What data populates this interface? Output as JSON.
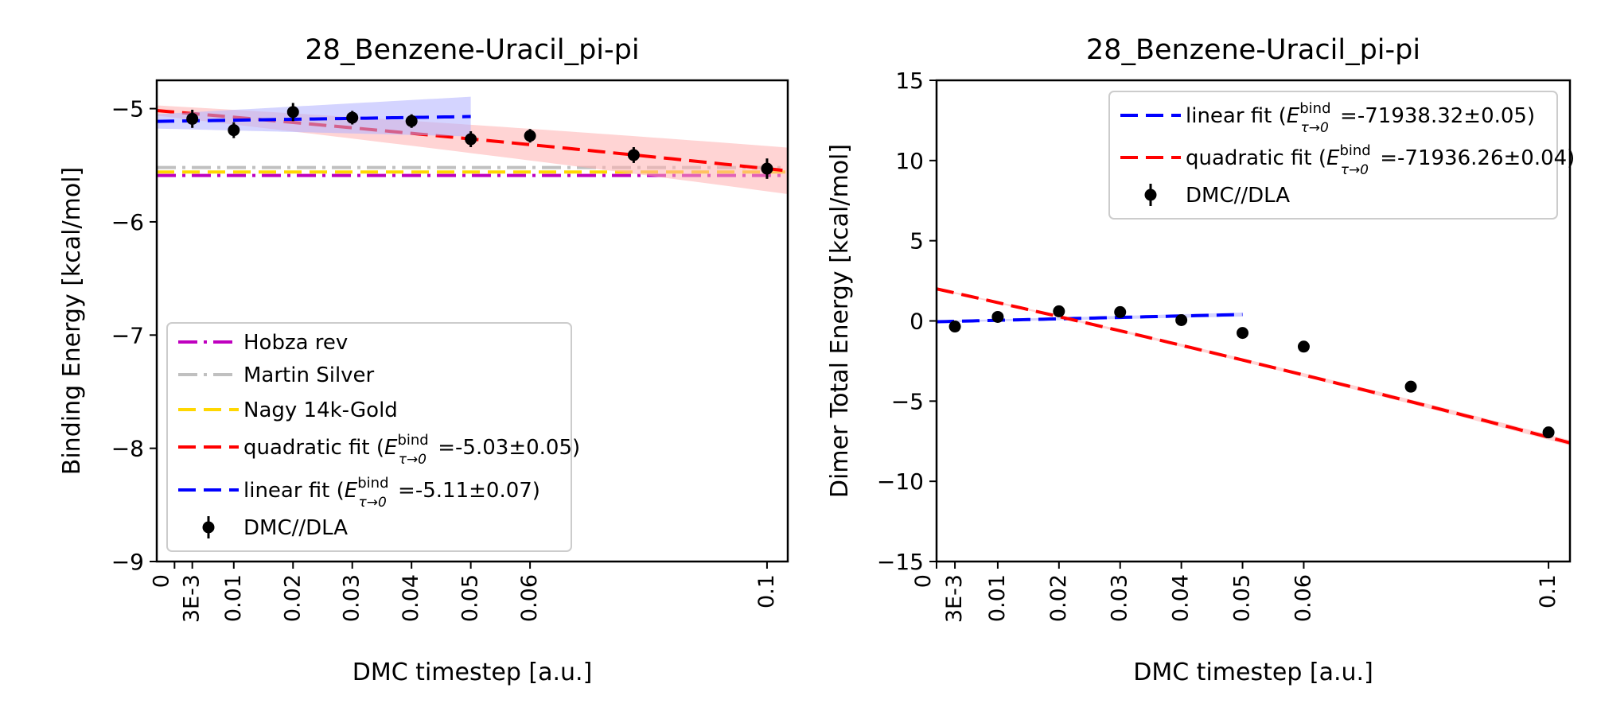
{
  "chart_data": [
    {
      "type": "scatter",
      "title": "28_Benzene-Uracil_pi-pi",
      "xlabel": "DMC timestep [a.u.]",
      "ylabel": "Binding Energy [kcal/mol]",
      "xlim": [
        -0.003,
        0.1035
      ],
      "ylim": [
        -9,
        -4.75
      ],
      "xticks": [
        0,
        0.003,
        0.01,
        0.02,
        0.03,
        0.04,
        0.05,
        0.06,
        0.1
      ],
      "xtick_labels": [
        "0",
        "3E-3",
        "0.01",
        "0.02",
        "0.03",
        "0.04",
        "0.05",
        "0.06",
        "0.1"
      ],
      "yticks": [
        -9,
        -8,
        -7,
        -6,
        -5
      ],
      "ytick_labels": [
        "−9",
        "−8",
        "−7",
        "−6",
        "−5"
      ],
      "grid": false,
      "legend_position": "lower-left",
      "reference_lines": [
        {
          "name": "Hobza rev",
          "y": -5.59,
          "color": "#bf00bf",
          "style": "dashdot"
        },
        {
          "name": "Martin Silver",
          "y": -5.52,
          "color": "#c0c0c0",
          "style": "dashdot"
        },
        {
          "name": "Nagy 14k-Gold",
          "y": -5.56,
          "color": "#ffd700",
          "style": "dashed"
        }
      ],
      "fits": [
        {
          "name": "quadratic fit",
          "legend_prefix": "quadratic fit (",
          "legend_value": " =-5.03±0.05)",
          "color": "#ff0000",
          "x": [
            -0.003,
            0.1035
          ],
          "coeffs": [
            -5.03,
            -4.5,
            -5.0
          ],
          "band": 0.05,
          "band_color": "#ffb0b0"
        },
        {
          "name": "linear fit",
          "legend_prefix": "linear fit (",
          "legend_value": " =-5.11±0.07)",
          "color": "#0000ff",
          "x": [
            -0.003,
            0.05
          ],
          "coeffs": [
            -5.11,
            0.8,
            0
          ],
          "band": 0.07,
          "band_color": "#b0b0ff"
        }
      ],
      "series": [
        {
          "name": "DMC//DLA",
          "x": [
            0.003,
            0.01,
            0.02,
            0.03,
            0.04,
            0.05,
            0.06,
            0.0775,
            0.1
          ],
          "y": [
            -5.09,
            -5.19,
            -5.03,
            -5.08,
            -5.11,
            -5.27,
            -5.24,
            -5.41,
            -5.53
          ],
          "yerr": [
            0.08,
            0.07,
            0.08,
            0.06,
            0.06,
            0.07,
            0.06,
            0.07,
            0.09
          ],
          "color": "#000000"
        }
      ]
    },
    {
      "type": "scatter",
      "title": "28_Benzene-Uracil_pi-pi",
      "xlabel": "DMC timestep [a.u.]",
      "ylabel": "Dimer Total Energy [kcal/mol]",
      "xlim": [
        0,
        0.1035
      ],
      "ylim": [
        -15,
        15
      ],
      "xticks": [
        0,
        0.003,
        0.01,
        0.02,
        0.03,
        0.04,
        0.05,
        0.06,
        0.1
      ],
      "xtick_labels": [
        "0",
        "3E-3",
        "0.01",
        "0.02",
        "0.03",
        "0.04",
        "0.05",
        "0.06",
        "0.1"
      ],
      "yticks": [
        -15,
        -10,
        -5,
        0,
        5,
        10,
        15
      ],
      "ytick_labels": [
        "−15",
        "−10",
        "−5",
        "0",
        "5",
        "10",
        "15"
      ],
      "grid": false,
      "legend_position": "upper-right",
      "fits": [
        {
          "name": "linear fit",
          "legend_prefix": "linear fit (",
          "legend_value": " =-71938.32±0.05)",
          "color": "#0000ff",
          "x": [
            0,
            0.05
          ],
          "coeffs": [
            -0.05,
            9.0,
            0
          ],
          "band": 0.05,
          "band_color": "#b0b0ff"
        },
        {
          "name": "quadratic fit",
          "legend_prefix": "quadratic fit (",
          "legend_value": " =-71936.26±0.04)",
          "color": "#ff0000",
          "x": [
            0,
            0.1035
          ],
          "coeffs": [
            2.0,
            -85.0,
            -75.0
          ],
          "band": 0.04,
          "band_color": "#ffb0b0"
        }
      ],
      "series": [
        {
          "name": "DMC//DLA",
          "x": [
            0.003,
            0.01,
            0.02,
            0.03,
            0.04,
            0.05,
            0.06,
            0.0775,
            0.1
          ],
          "y": [
            -0.35,
            0.25,
            0.6,
            0.55,
            0.05,
            -0.75,
            -1.6,
            -4.1,
            -6.95
          ],
          "yerr": [
            0.05,
            0.05,
            0.05,
            0.05,
            0.05,
            0.05,
            0.05,
            0.05,
            0.05
          ],
          "color": "#000000"
        }
      ]
    }
  ],
  "legend_subscript": {
    "base": "E",
    "sup": "bind",
    "sub": "τ→0"
  }
}
